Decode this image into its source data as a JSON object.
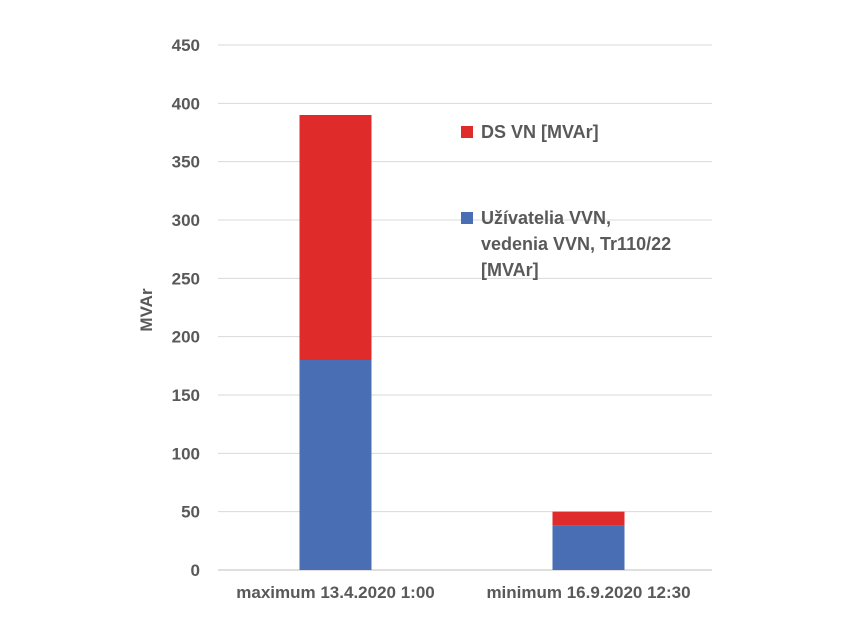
{
  "chart_data": {
    "type": "bar",
    "stacked": true,
    "categories": [
      "maximum 13.4.2020 1:00",
      "minimum 16.9.2020 12:30"
    ],
    "series": [
      {
        "name": "Užívatelia VVN, vedenia VVN, Tr110/22 [MVAr]",
        "name_lines": [
          "Užívatelia VVN,",
          "vedenia VVN, Tr110/22",
          "[MVAr]"
        ],
        "values": [
          180,
          38
        ],
        "color": "#4a6eb3"
      },
      {
        "name": "DS VN [MVAr]",
        "name_lines": [
          "DS VN [MVAr]"
        ],
        "values": [
          210,
          12
        ],
        "color": "#e02b2b"
      }
    ],
    "ylabel": "MVAr",
    "xlabel": "",
    "ylim": [
      0,
      450
    ],
    "yticks": [
      0,
      50,
      100,
      150,
      200,
      250,
      300,
      350,
      400,
      450
    ],
    "grid": true,
    "legend": "right"
  }
}
